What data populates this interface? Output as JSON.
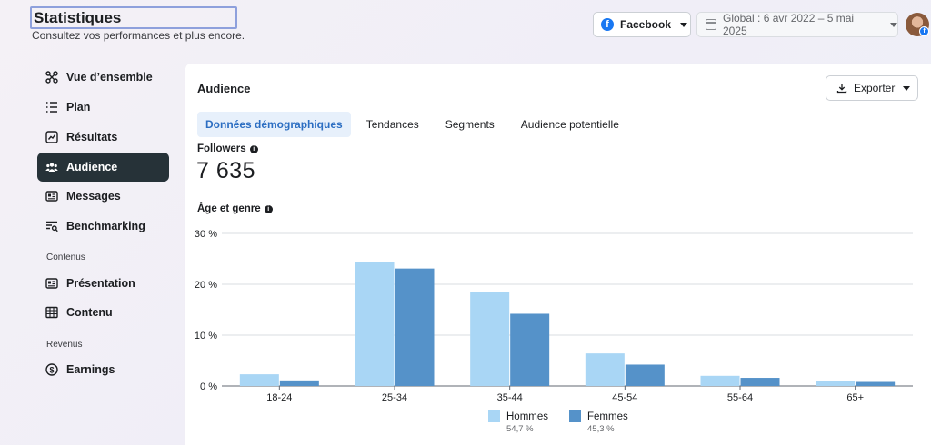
{
  "header": {
    "title": "Statistiques",
    "subtitle": "Consultez vos performances et plus encore.",
    "platform": {
      "label": "Facebook",
      "icon": "facebook-icon"
    },
    "date_range": {
      "label": "Global : 6 avr 2022 – 5 mai 2025",
      "icon": "calendar-icon"
    },
    "avatar_badge": "f"
  },
  "sidebar": {
    "items": [
      {
        "label": "Vue d’ensemble",
        "icon": "overview-icon"
      },
      {
        "label": "Plan",
        "icon": "list-icon"
      },
      {
        "label": "Résultats",
        "icon": "results-chart-icon"
      },
      {
        "label": "Audience",
        "icon": "people-icon",
        "active": true
      },
      {
        "label": "Messages",
        "icon": "messages-icon"
      },
      {
        "label": "Benchmarking",
        "icon": "benchmark-icon"
      }
    ],
    "section_content": "Contenus",
    "content_items": [
      {
        "label": "Présentation",
        "icon": "presentation-icon"
      },
      {
        "label": "Contenu",
        "icon": "table-icon"
      }
    ],
    "section_revenue": "Revenus",
    "revenue_items": [
      {
        "label": "Earnings",
        "icon": "dollar-icon"
      }
    ]
  },
  "main": {
    "title": "Audience",
    "export_label": "Exporter",
    "tabs": [
      {
        "label": "Données démographiques",
        "active": true
      },
      {
        "label": "Tendances"
      },
      {
        "label": "Segments"
      },
      {
        "label": "Audience potentielle"
      }
    ],
    "followers_label": "Followers",
    "followers_value": "7 635",
    "chart_title": "Âge et genre",
    "info_glyph": "i"
  },
  "colors": {
    "accent": "#2c6ec2",
    "active_nav": "#263238",
    "men": "#a9d6f5",
    "women": "#5592c9"
  },
  "chart_data": {
    "type": "bar",
    "title": "Âge et genre",
    "categories": [
      "18-24",
      "25-34",
      "35-44",
      "45-54",
      "55-64",
      "65+"
    ],
    "series": [
      {
        "name": "Hommes",
        "share": "54,7 %",
        "color": "#a9d6f5",
        "values": [
          2.3,
          24.3,
          18.5,
          6.4,
          2.0,
          0.9
        ]
      },
      {
        "name": "Femmes",
        "share": "45,3 %",
        "color": "#5592c9",
        "values": [
          1.1,
          23.1,
          14.2,
          4.2,
          1.6,
          0.8
        ]
      }
    ],
    "ylim": [
      0,
      30
    ],
    "yticks": [
      "0 %",
      "10 %",
      "20 %",
      "30 %"
    ],
    "grid": true,
    "legend": "bottom"
  }
}
